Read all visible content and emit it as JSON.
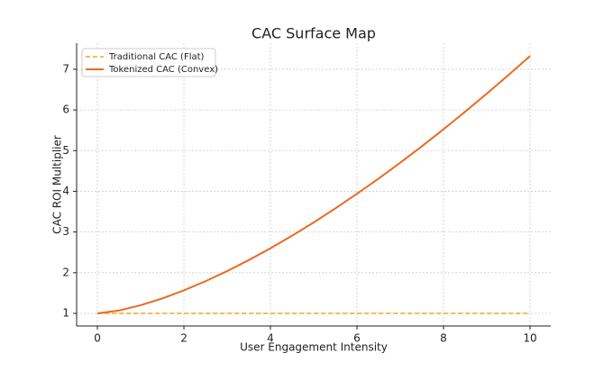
{
  "chart_data": {
    "type": "line",
    "title": "CAC Surface Map",
    "x_label": "User Engagement Intensity",
    "y_label": "CAC ROI Multiplier",
    "x": [
      0,
      0.5,
      1,
      1.5,
      2,
      2.5,
      3,
      3.5,
      4,
      4.5,
      5,
      5.5,
      6,
      6.5,
      7,
      7.5,
      8,
      8.5,
      9,
      9.5,
      10
    ],
    "series": [
      {
        "name": "Traditional CAC (Flat)",
        "color": "#f5a623",
        "dash": true,
        "values": [
          1,
          1,
          1,
          1,
          1,
          1,
          1,
          1,
          1,
          1,
          1,
          1,
          1,
          1,
          1,
          1,
          1,
          1,
          1,
          1,
          1
        ]
      },
      {
        "name": "Tokenized CAC (Convex)",
        "color": "#ec6a1f",
        "dash": false,
        "values": [
          1,
          1.071,
          1.2,
          1.367,
          1.566,
          1.791,
          2.039,
          2.31,
          2.6,
          2.909,
          3.236,
          3.58,
          3.939,
          4.314,
          4.704,
          5.108,
          5.525,
          5.956,
          6.4,
          6.856,
          7.325
        ]
      }
    ],
    "xlim": [
      -0.48,
      10.48
    ],
    "ylim": [
      0.69,
      7.64
    ],
    "xticks": [
      0,
      2,
      4,
      6,
      8,
      10
    ],
    "yticks": [
      1,
      2,
      3,
      4,
      5,
      6,
      7
    ],
    "grid": true,
    "legend": "upper-left"
  }
}
